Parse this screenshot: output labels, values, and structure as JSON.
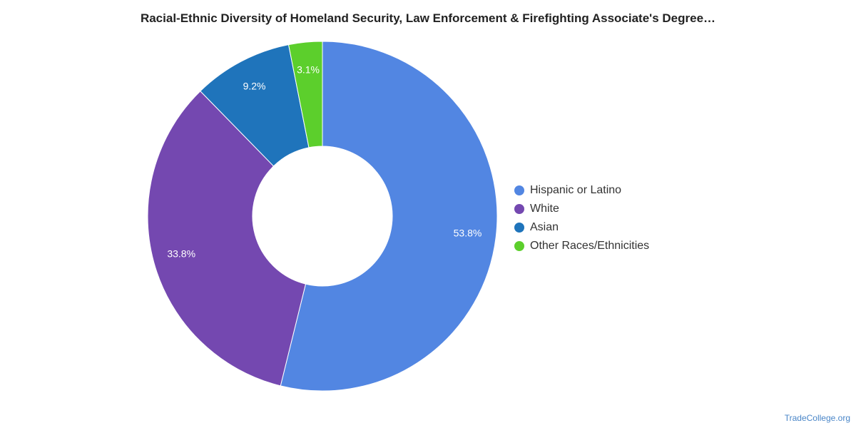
{
  "chart_data": {
    "type": "pie",
    "variant": "donut",
    "title": "Racial-Ethnic Diversity of Homeland Security, Law Enforcement & Firefighting Associate's Degree…",
    "categories": [
      "Hispanic or Latino",
      "White",
      "Asian",
      "Other Races/Ethnicities"
    ],
    "values": [
      53.8,
      33.8,
      9.2,
      3.1
    ],
    "labels": [
      "53.8%",
      "33.8%",
      "9.2%",
      "3.1%"
    ],
    "unit": "%",
    "colors": [
      "#5286e2",
      "#7448b0",
      "#1f74bb",
      "#5ccf2c"
    ],
    "legend_position": "right"
  },
  "credit": "TradeCollege.org"
}
